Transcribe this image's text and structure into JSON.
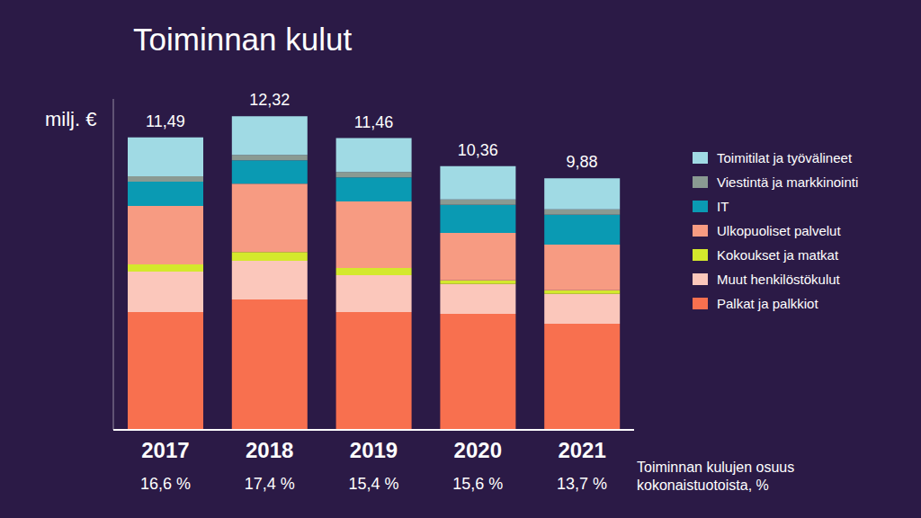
{
  "chart_data": {
    "type": "bar",
    "title": "Toiminnan kulut",
    "y_label": "milj. €",
    "categories": [
      "2017",
      "2018",
      "2019",
      "2020",
      "2021"
    ],
    "series": [
      {
        "name": "Palkat ja palkkiot",
        "color": "#f8704f",
        "values": [
          4.63,
          5.12,
          4.63,
          4.56,
          4.17
        ]
      },
      {
        "name": "Muut henkilöstökulut",
        "color": "#fbc7bb",
        "values": [
          1.59,
          1.52,
          1.45,
          1.17,
          1.17
        ]
      },
      {
        "name": "Kokoukset ja matkat",
        "color": "#d4e82c",
        "values": [
          0.28,
          0.35,
          0.28,
          0.14,
          0.14
        ]
      },
      {
        "name": "Ulkopuoliset palvelut",
        "color": "#f79b82",
        "values": [
          2.3,
          2.68,
          2.61,
          1.87,
          1.8
        ]
      },
      {
        "name": "IT",
        "color": "#0a9ab3",
        "values": [
          0.95,
          0.92,
          0.95,
          1.1,
          1.17
        ]
      },
      {
        "name": "Viestintä ja markkinointi",
        "color": "#8a9a92",
        "values": [
          0.21,
          0.21,
          0.21,
          0.21,
          0.21
        ]
      },
      {
        "name": "Toimitilat ja työvälineet",
        "color": "#a0dae4",
        "values": [
          1.53,
          1.52,
          1.33,
          1.31,
          1.22
        ]
      }
    ],
    "stacked": true,
    "ylim": [
      0,
      13
    ],
    "yticks": [],
    "tick_labels": "x",
    "legend": "right",
    "totals": {
      "values": [
        11.49,
        12.32,
        11.46,
        10.36,
        9.88
      ],
      "value_labels": [
        "11,49",
        "12,32",
        "11,46",
        "10,36",
        "9,88"
      ]
    },
    "share": {
      "label": "Toiminnan kulujen osuus kokonaistuotoista, %",
      "labels": [
        "16,6 %",
        "17,4 %",
        "15,4 %",
        "15,6 %",
        "13,7 %"
      ]
    }
  }
}
